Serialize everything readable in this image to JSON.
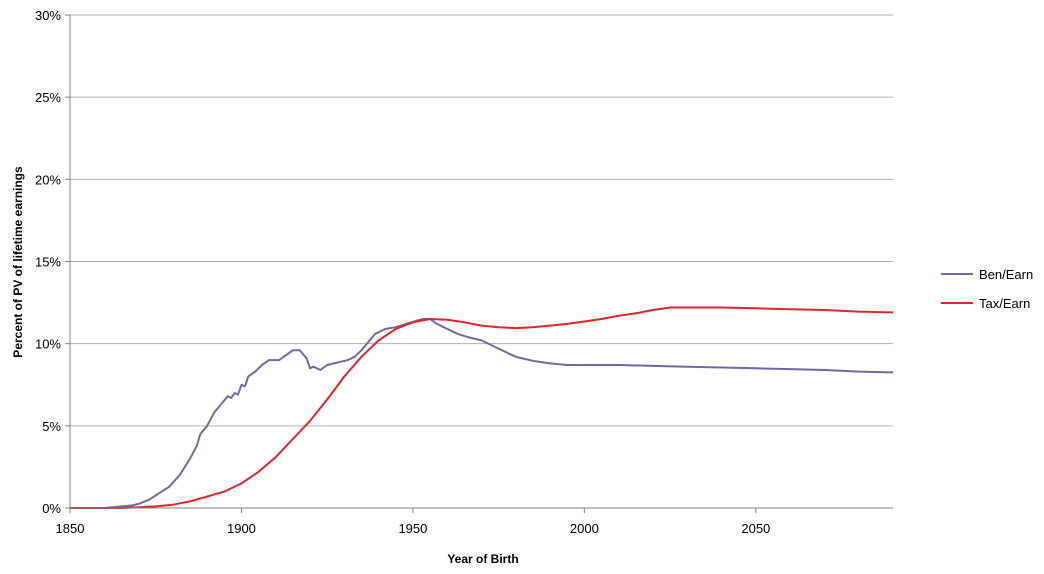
{
  "chart_data": {
    "type": "line",
    "title": "",
    "xlabel": "Year of Birth",
    "ylabel": "Percent of PV of lifetime earnings",
    "xlim": [
      1850,
      2090
    ],
    "ylim": [
      0,
      30
    ],
    "x_ticks": [
      1850,
      1900,
      1950,
      2000,
      2050
    ],
    "y_ticks": [
      0,
      5,
      10,
      15,
      20,
      25,
      30
    ],
    "y_tick_format": "percent",
    "grid": "horizontal",
    "legend_position": "right",
    "series": [
      {
        "name": "Ben/Earn",
        "color": "#6f6aa6",
        "points": [
          [
            1850,
            0.0
          ],
          [
            1860,
            0.0
          ],
          [
            1865,
            0.1
          ],
          [
            1868,
            0.15
          ],
          [
            1870,
            0.25
          ],
          [
            1873,
            0.5
          ],
          [
            1876,
            0.9
          ],
          [
            1879,
            1.3
          ],
          [
            1882,
            2.0
          ],
          [
            1885,
            3.0
          ],
          [
            1887,
            3.8
          ],
          [
            1888,
            4.5
          ],
          [
            1890,
            5.0
          ],
          [
            1892,
            5.8
          ],
          [
            1894,
            6.3
          ],
          [
            1896,
            6.8
          ],
          [
            1897,
            6.7
          ],
          [
            1898,
            7.0
          ],
          [
            1899,
            6.9
          ],
          [
            1900,
            7.5
          ],
          [
            1901,
            7.4
          ],
          [
            1902,
            8.0
          ],
          [
            1904,
            8.3
          ],
          [
            1906,
            8.7
          ],
          [
            1908,
            9.0
          ],
          [
            1911,
            9.0
          ],
          [
            1913,
            9.3
          ],
          [
            1915,
            9.6
          ],
          [
            1917,
            9.6
          ],
          [
            1919,
            9.1
          ],
          [
            1920,
            8.5
          ],
          [
            1921,
            8.6
          ],
          [
            1923,
            8.4
          ],
          [
            1925,
            8.7
          ],
          [
            1927,
            8.8
          ],
          [
            1929,
            8.9
          ],
          [
            1931,
            9.0
          ],
          [
            1933,
            9.2
          ],
          [
            1935,
            9.6
          ],
          [
            1937,
            10.1
          ],
          [
            1939,
            10.6
          ],
          [
            1942,
            10.9
          ],
          [
            1945,
            11.0
          ],
          [
            1948,
            11.2
          ],
          [
            1951,
            11.4
          ],
          [
            1953,
            11.5
          ],
          [
            1955,
            11.5
          ],
          [
            1957,
            11.2
          ],
          [
            1960,
            10.9
          ],
          [
            1963,
            10.6
          ],
          [
            1966,
            10.4
          ],
          [
            1970,
            10.2
          ],
          [
            1975,
            9.7
          ],
          [
            1980,
            9.2
          ],
          [
            1985,
            8.95
          ],
          [
            1990,
            8.8
          ],
          [
            1995,
            8.7
          ],
          [
            2000,
            8.7
          ],
          [
            2010,
            8.7
          ],
          [
            2020,
            8.65
          ],
          [
            2030,
            8.6
          ],
          [
            2040,
            8.55
          ],
          [
            2050,
            8.5
          ],
          [
            2060,
            8.45
          ],
          [
            2070,
            8.4
          ],
          [
            2080,
            8.3
          ],
          [
            2090,
            8.25
          ]
        ]
      },
      {
        "name": "Tax/Earn",
        "color": "#e0262b",
        "points": [
          [
            1850,
            0.0
          ],
          [
            1865,
            0.0
          ],
          [
            1870,
            0.05
          ],
          [
            1875,
            0.1
          ],
          [
            1880,
            0.2
          ],
          [
            1885,
            0.4
          ],
          [
            1890,
            0.7
          ],
          [
            1895,
            1.0
          ],
          [
            1900,
            1.5
          ],
          [
            1905,
            2.2
          ],
          [
            1910,
            3.1
          ],
          [
            1915,
            4.2
          ],
          [
            1920,
            5.3
          ],
          [
            1925,
            6.6
          ],
          [
            1930,
            8.0
          ],
          [
            1935,
            9.2
          ],
          [
            1940,
            10.2
          ],
          [
            1945,
            10.9
          ],
          [
            1950,
            11.3
          ],
          [
            1955,
            11.5
          ],
          [
            1960,
            11.45
          ],
          [
            1965,
            11.3
          ],
          [
            1970,
            11.1
          ],
          [
            1975,
            11.0
          ],
          [
            1980,
            10.95
          ],
          [
            1985,
            11.0
          ],
          [
            1990,
            11.1
          ],
          [
            1995,
            11.2
          ],
          [
            2000,
            11.35
          ],
          [
            2005,
            11.5
          ],
          [
            2010,
            11.7
          ],
          [
            2015,
            11.85
          ],
          [
            2020,
            12.05
          ],
          [
            2025,
            12.2
          ],
          [
            2030,
            12.2
          ],
          [
            2040,
            12.2
          ],
          [
            2050,
            12.15
          ],
          [
            2060,
            12.1
          ],
          [
            2070,
            12.05
          ],
          [
            2080,
            11.95
          ],
          [
            2090,
            11.9
          ]
        ]
      }
    ]
  }
}
